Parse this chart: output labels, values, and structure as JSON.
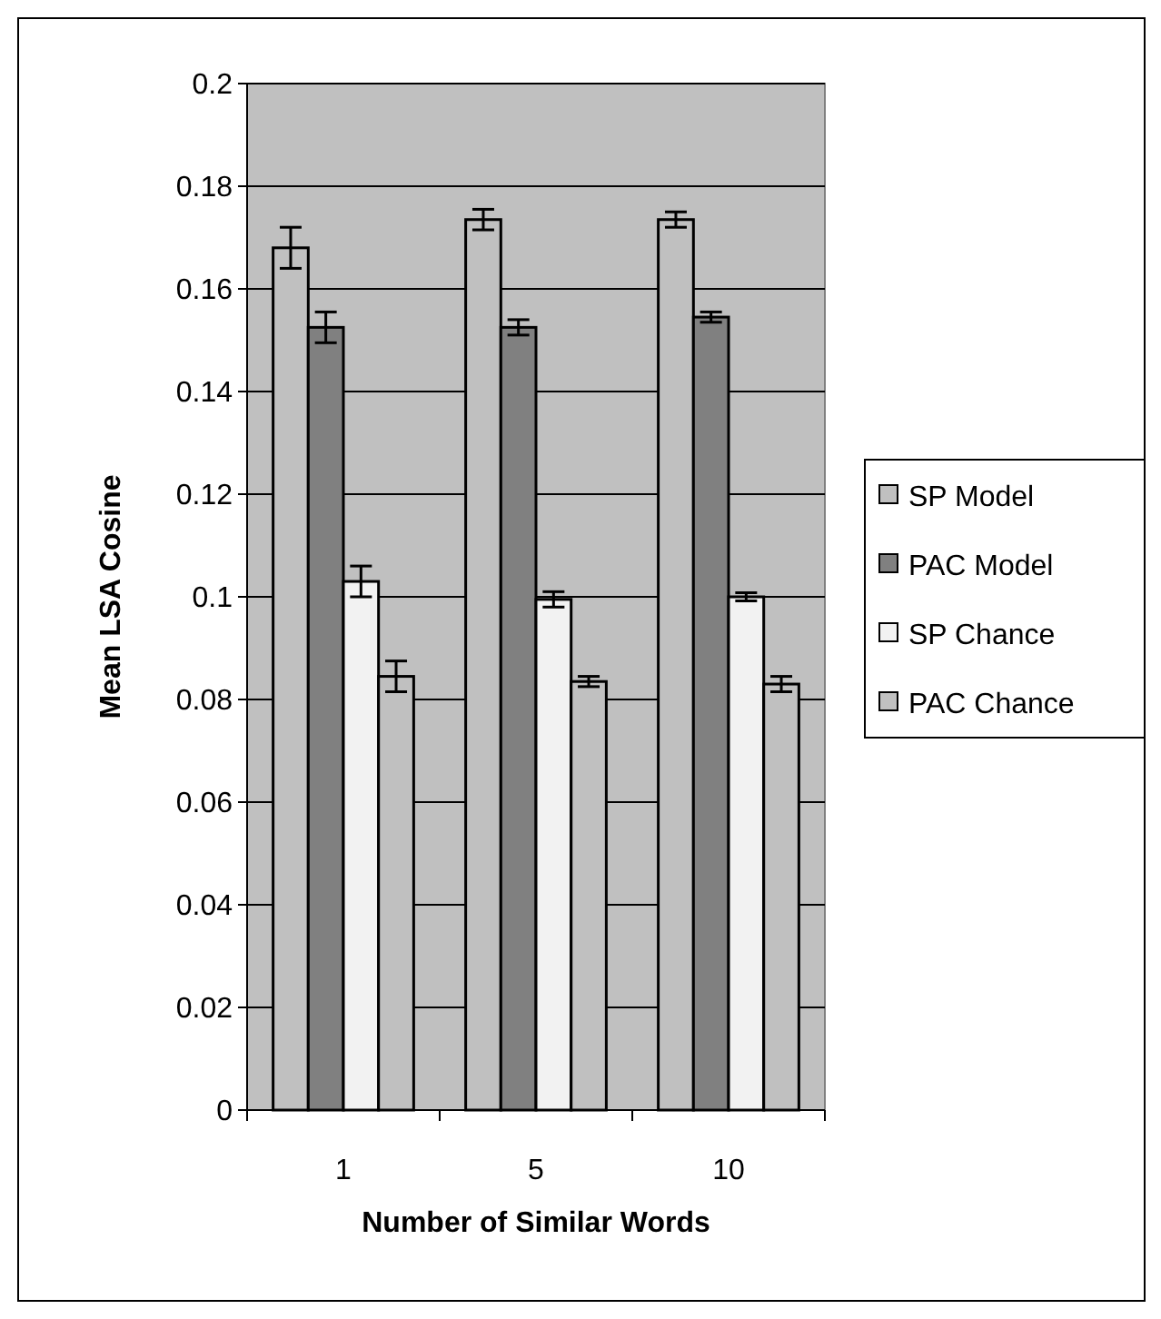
{
  "chart_data": {
    "type": "bar",
    "xlabel": "Number of Similar Words",
    "ylabel": "Mean LSA Cosine",
    "categories": [
      "1",
      "5",
      "10"
    ],
    "series": [
      {
        "name": "SP Model",
        "color": "#c0c0c0",
        "values": [
          0.168,
          0.1735,
          0.1735
        ],
        "errors": [
          0.004,
          0.002,
          0.0015
        ]
      },
      {
        "name": "PAC Model",
        "color": "#808080",
        "values": [
          0.1525,
          0.1525,
          0.1545
        ],
        "errors": [
          0.003,
          0.0015,
          0.001
        ]
      },
      {
        "name": "SP Chance",
        "color": "#f2f2f2",
        "values": [
          0.103,
          0.0995,
          0.1
        ],
        "errors": [
          0.003,
          0.0015,
          0.0008
        ]
      },
      {
        "name": "PAC Chance",
        "color": "#c0c0c0",
        "values": [
          0.0845,
          0.0835,
          0.083
        ],
        "errors": [
          0.003,
          0.001,
          0.0015
        ]
      }
    ],
    "ylim": [
      0,
      0.2
    ],
    "yticks": [
      0,
      0.02,
      0.04,
      0.06,
      0.08,
      0.1,
      0.12,
      0.14,
      0.16,
      0.18,
      0.2
    ],
    "grid": "y",
    "legend": "right"
  }
}
